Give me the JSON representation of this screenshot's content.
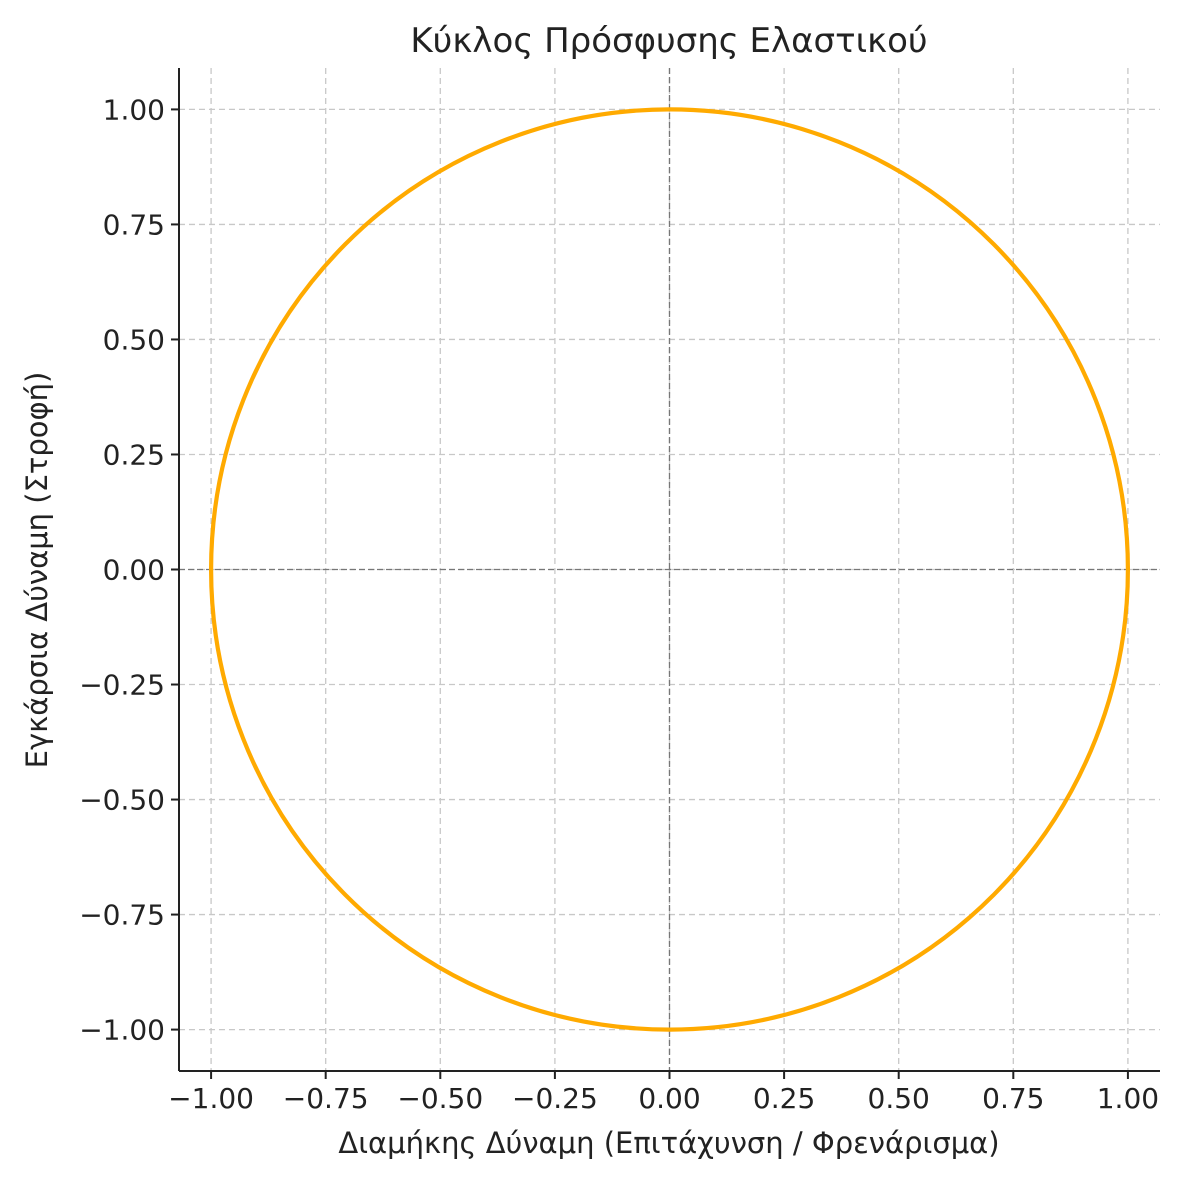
{
  "chart_data": {
    "type": "line",
    "title": "Κύκλος Πρόσφυσης Ελαστικού",
    "xlabel": "Διαμήκης Δύναμη (Επιτάχυνση / Φρενάρισμα)",
    "ylabel": "Εγκάρσια Δύναμη (Στροφή)",
    "xlim": [
      -1.07,
      1.07
    ],
    "ylim": [
      -1.09,
      1.09
    ],
    "x_ticks": [
      -1.0,
      -0.75,
      -0.5,
      -0.25,
      0.0,
      0.25,
      0.5,
      0.75,
      1.0
    ],
    "y_ticks": [
      -1.0,
      -0.75,
      -0.5,
      -0.25,
      0.0,
      0.25,
      0.5,
      0.75,
      1.0
    ],
    "x_tick_labels": [
      "−1.00",
      "−0.75",
      "−0.50",
      "−0.25",
      "0.00",
      "0.25",
      "0.50",
      "0.75",
      "1.00"
    ],
    "y_tick_labels": [
      "−1.00",
      "−0.75",
      "−0.50",
      "−0.25",
      "0.00",
      "0.25",
      "0.50",
      "0.75",
      "1.00"
    ],
    "grid": true,
    "reference_lines": {
      "x": 0,
      "y": 0
    },
    "series": [
      {
        "shape": "circle",
        "center": [
          0,
          0
        ],
        "radius": 1.0,
        "color": "#FFAA00"
      }
    ]
  }
}
